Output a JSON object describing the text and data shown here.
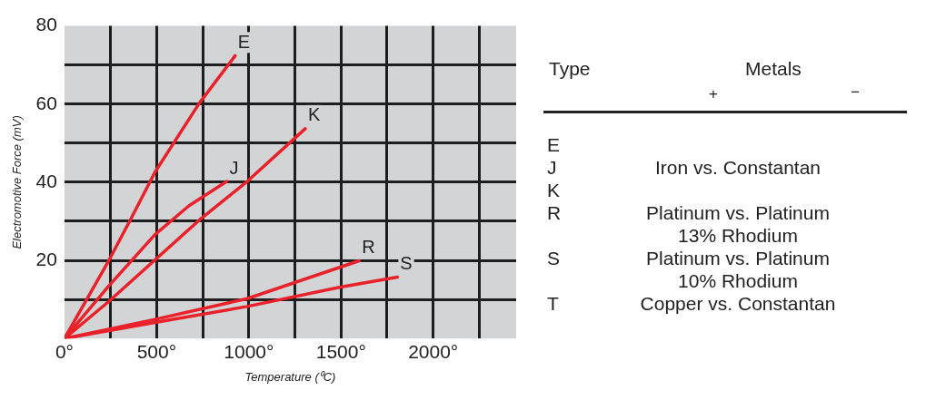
{
  "chart_data": [
    {
      "type": "line",
      "xlabel": "Temperature (⁰C)",
      "ylabel": "Electromotive Force (mV)",
      "xlim": [
        0,
        2450
      ],
      "ylim": [
        0,
        80
      ],
      "xticks": [
        {
          "value": 0,
          "label": "0°"
        },
        {
          "value": 250,
          "label": null
        },
        {
          "value": 500,
          "label": "500°"
        },
        {
          "value": 750,
          "label": null
        },
        {
          "value": 1000,
          "label": "1000°"
        },
        {
          "value": 1250,
          "label": null
        },
        {
          "value": 1500,
          "label": "1500°"
        },
        {
          "value": 1750,
          "label": null
        },
        {
          "value": 2000,
          "label": "2000°"
        },
        {
          "value": 2250,
          "label": null
        }
      ],
      "yticks": [
        {
          "value": 0,
          "label": null
        },
        {
          "value": 10,
          "label": null
        },
        20,
        {
          "value": 30,
          "label": null
        },
        40,
        {
          "value": 50,
          "label": null
        },
        60,
        {
          "value": 70,
          "label": null
        },
        80
      ],
      "grid": true,
      "marker": "none",
      "line_style": "solid",
      "series": [
        {
          "name": "E",
          "color": "#e8212b",
          "x": [
            0,
            241,
            361,
            491,
            731,
            926
          ],
          "values": [
            0,
            20,
            30.7,
            42.6,
            60.2,
            72.4
          ]
        },
        {
          "name": "J",
          "color": "#e8212b",
          "x": [
            0,
            241,
            491,
            676,
            880
          ],
          "values": [
            0,
            13.5,
            26.6,
            34,
            40.2
          ]
        },
        {
          "name": "K",
          "color": "#e8212b",
          "x": [
            0,
            241,
            731,
            991,
            1306
          ],
          "values": [
            0,
            9.5,
            30.3,
            40.2,
            53.7
          ]
        },
        {
          "name": "R",
          "color": "#e8212b",
          "x": [
            0,
            491,
            991,
            1598
          ],
          "values": [
            0,
            4.9,
            10.2,
            19.9
          ]
        },
        {
          "name": "S",
          "color": "#e8212b",
          "x": [
            0,
            491,
            991,
            1491,
            1806
          ],
          "values": [
            0,
            4.1,
            8.2,
            13.1,
            15.7
          ]
        }
      ]
    },
    {
      "type": "other",
      "annotations": [
        "Type",
        "Metals",
        "+",
        "−"
      ],
      "categories": [
        "E",
        "J",
        "K",
        "R",
        "S",
        "T"
      ],
      "cell_labels": [
        [
          null
        ],
        [
          "Iron vs. Constantan"
        ],
        [
          null
        ],
        [
          "Platinum vs. Platinum\n13% Rhodium"
        ],
        [
          "Platinum vs. Platinum\n10% Rhodium"
        ],
        [
          "Copper vs. Constantan"
        ]
      ]
    }
  ]
}
